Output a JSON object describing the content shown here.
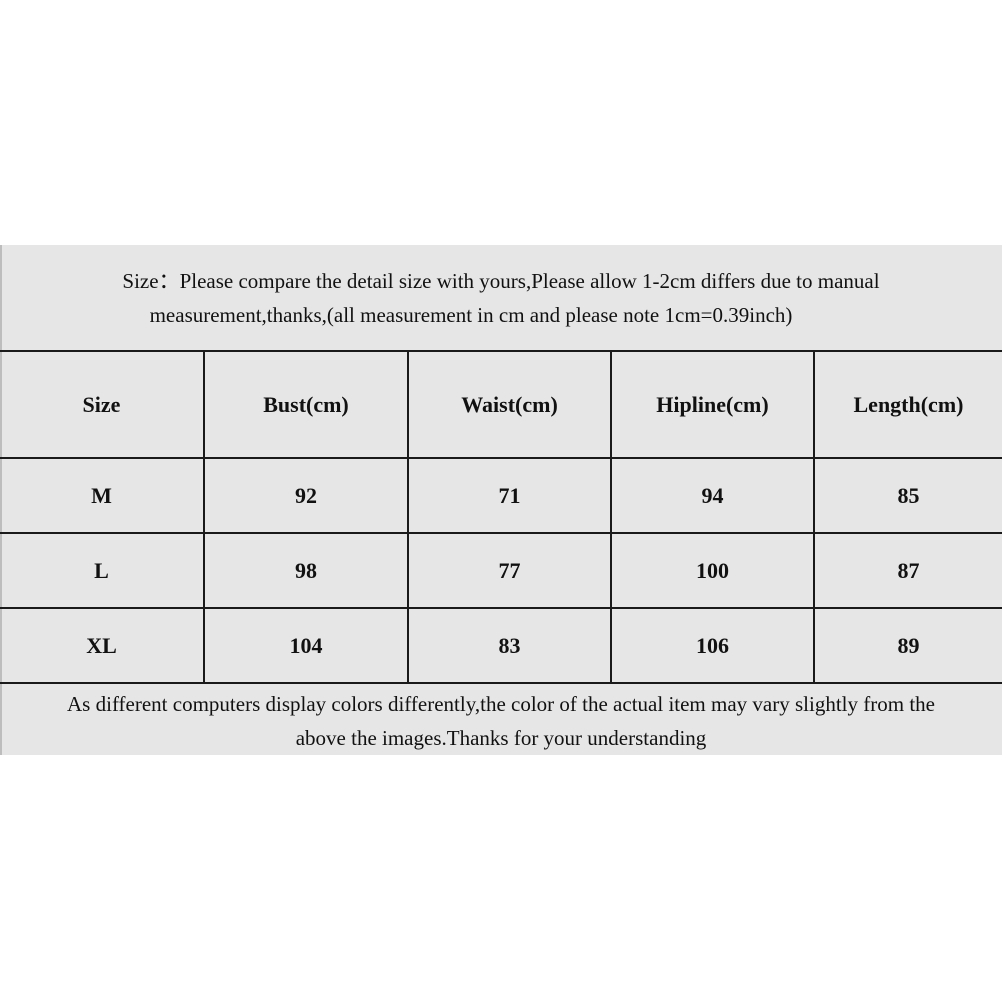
{
  "intro": {
    "line1": "Size：Please compare the detail size with yours,Please allow 1-2cm differs due to manual",
    "line2": "measurement,thanks,(all measurement in cm and please note 1cm=0.39inch)"
  },
  "table": {
    "headers": [
      "Size",
      "Bust(cm)",
      "Waist(cm)",
      "Hipline(cm)",
      "Length(cm)"
    ],
    "rows": [
      [
        "M",
        "92",
        "71",
        "94",
        "85"
      ],
      [
        "L",
        "98",
        "77",
        "100",
        "87"
      ],
      [
        "XL",
        "104",
        "83",
        "106",
        "89"
      ]
    ]
  },
  "footer": {
    "line1": "As different computers display colors differently,the color of the actual item may vary slightly from the",
    "line2": "above the images.Thanks for your understanding"
  },
  "colors": {
    "background": "#e6e6e6",
    "border": "#1a1a1a"
  }
}
